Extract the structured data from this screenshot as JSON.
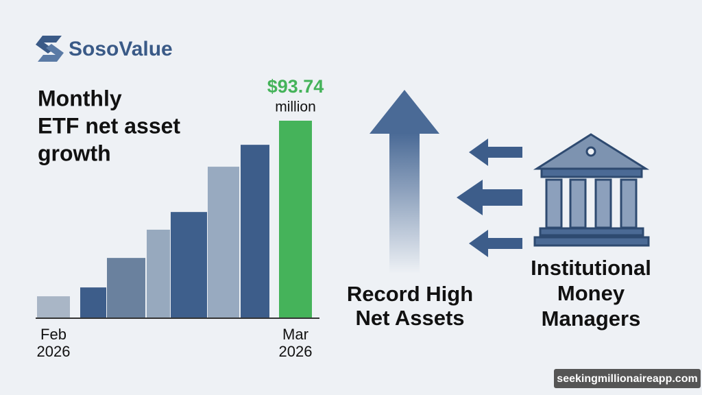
{
  "brand": "SosoValue",
  "title_lines": [
    "Monthly",
    "ETF net asset",
    "growth"
  ],
  "arrow_caption_lines": [
    "Record High",
    "Net Assets"
  ],
  "institution_caption_lines": [
    "Institutional",
    "Money",
    "Managers"
  ],
  "watermark": "seekingmillionaireapp.com",
  "chart_data": {
    "type": "bar",
    "categories": [
      [
        "Feb",
        "2026"
      ],
      null,
      null,
      null,
      null,
      null,
      null,
      [
        "Mar",
        "2026"
      ]
    ],
    "values": [
      10.4,
      14.6,
      28.6,
      42,
      50.4,
      71.9,
      82.3,
      93.74
    ],
    "value_labels": [
      null,
      null,
      null,
      null,
      null,
      null,
      null,
      "$93.74"
    ],
    "unit_label": "million",
    "colors": [
      "#a9b6c6",
      "#3d5d8a",
      "#6a819e",
      "#97a9be",
      "#3e5f8c",
      "#98aac0",
      "#3d5d8a",
      "#45b35a"
    ],
    "ylim": [
      0,
      93.74
    ]
  }
}
